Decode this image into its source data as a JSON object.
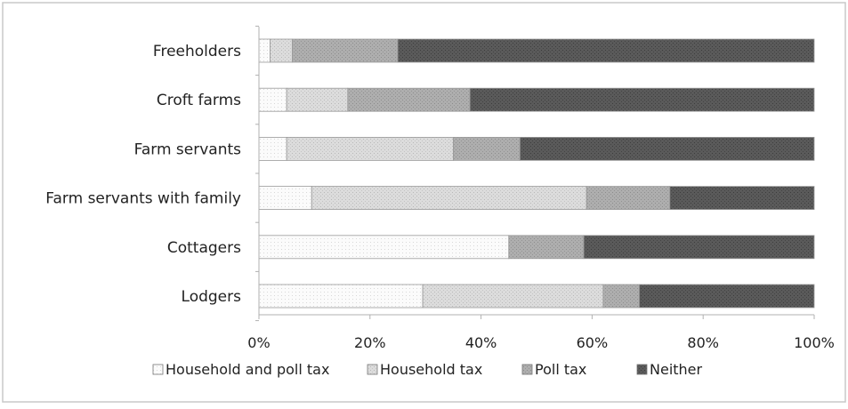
{
  "chart_data": {
    "type": "bar",
    "orientation": "horizontal",
    "stacked": true,
    "percent_stacked": true,
    "categories": [
      "Freeholders",
      "Croft farms",
      "Farm servants",
      "Farm servants with family",
      "Cottagers",
      "Lodgers"
    ],
    "series": [
      {
        "name": "Household and poll tax",
        "values": [
          2,
          5,
          5,
          9.5,
          45,
          29.5
        ]
      },
      {
        "name": "Household tax",
        "values": [
          4,
          11,
          30,
          49.5,
          0,
          32.5
        ]
      },
      {
        "name": "Poll tax",
        "values": [
          19,
          22,
          12,
          15,
          13.5,
          6.5
        ]
      },
      {
        "name": "Neither",
        "values": [
          75,
          62,
          53,
          26,
          41.5,
          31.5
        ]
      }
    ],
    "x_ticks": [
      "0%",
      "20%",
      "40%",
      "60%",
      "80%",
      "100%"
    ],
    "xlim": [
      0,
      100
    ],
    "grid": false,
    "legend_position": "bottom",
    "colors": [
      "#f7f7f7",
      "#d6d6d6",
      "#a9a9a9",
      "#555555"
    ],
    "title": "",
    "xlabel": "",
    "ylabel": ""
  }
}
